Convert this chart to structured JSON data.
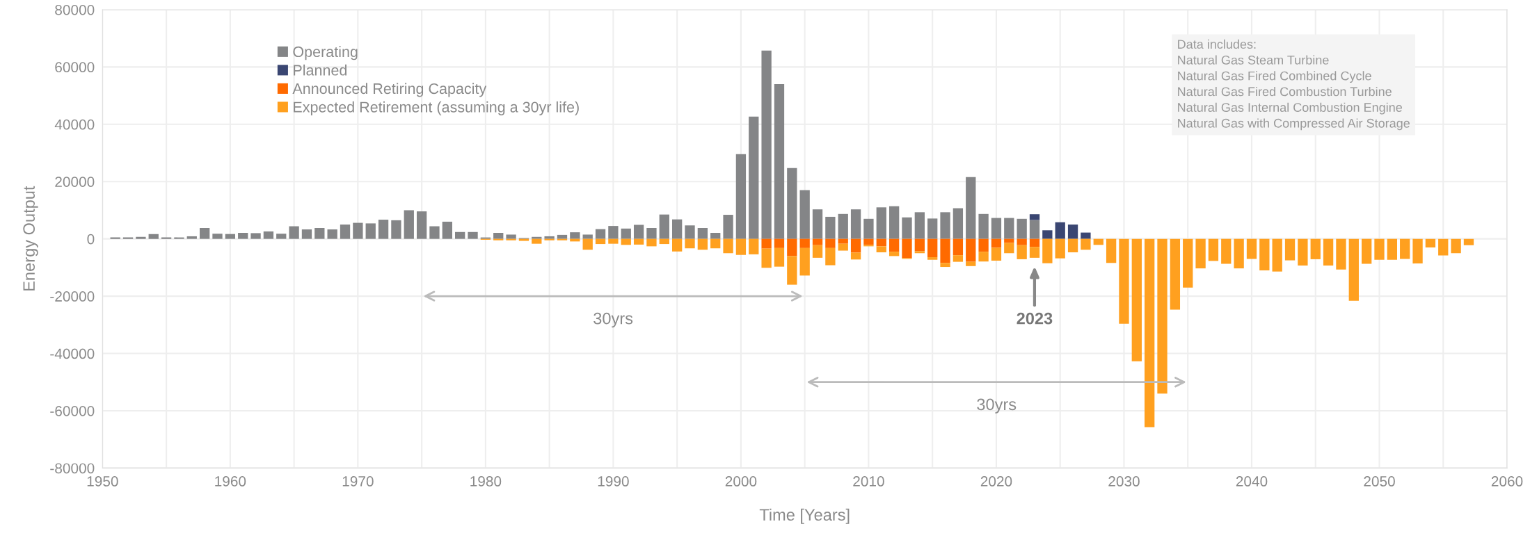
{
  "chart_data": {
    "type": "bar",
    "stacked": true,
    "xlabel": "Time [Years]",
    "ylabel": "Energy Output",
    "x": [
      1951,
      1952,
      1953,
      1954,
      1955,
      1956,
      1957,
      1958,
      1959,
      1960,
      1961,
      1962,
      1963,
      1964,
      1965,
      1966,
      1967,
      1968,
      1969,
      1970,
      1971,
      1972,
      1973,
      1974,
      1975,
      1976,
      1977,
      1978,
      1979,
      1980,
      1981,
      1982,
      1983,
      1984,
      1985,
      1986,
      1987,
      1988,
      1989,
      1990,
      1991,
      1992,
      1993,
      1994,
      1995,
      1996,
      1997,
      1998,
      1999,
      2000,
      2001,
      2002,
      2003,
      2004,
      2005,
      2006,
      2007,
      2008,
      2009,
      2010,
      2011,
      2012,
      2013,
      2014,
      2015,
      2016,
      2017,
      2018,
      2019,
      2020,
      2021,
      2022,
      2023,
      2024,
      2025,
      2026,
      2027,
      2028,
      2029,
      2030,
      2031,
      2032,
      2033,
      2034,
      2035,
      2036,
      2037,
      2038,
      2039,
      2040,
      2041,
      2042,
      2043,
      2044,
      2045,
      2046,
      2047,
      2048,
      2049,
      2050,
      2051,
      2052,
      2053,
      2054,
      2055,
      2056,
      2057
    ],
    "series": [
      {
        "name": "Operating",
        "color": "#848587",
        "values": [
          500,
          500,
          700,
          1700,
          500,
          500,
          900,
          3800,
          1800,
          1700,
          2100,
          2000,
          2600,
          1800,
          4400,
          3300,
          3800,
          3300,
          5000,
          5600,
          5400,
          6700,
          6500,
          10000,
          9600,
          4400,
          6000,
          2400,
          2400,
          500,
          2100,
          1500,
          300,
          700,
          900,
          1400,
          2300,
          1500,
          3400,
          4500,
          3600,
          4900,
          3800,
          8500,
          6800,
          4700,
          3800,
          2100,
          8400,
          29600,
          42700,
          65700,
          54000,
          24700,
          17000,
          10300,
          7700,
          8700,
          10300,
          7000,
          11000,
          11400,
          7500,
          9300,
          7100,
          9300,
          10700,
          21600,
          8700,
          7300,
          7300,
          7000,
          6600,
          null,
          null,
          null,
          null,
          null,
          null,
          null,
          null,
          null,
          null,
          null,
          null,
          null,
          null,
          null,
          null,
          null,
          null,
          null,
          null,
          null,
          null,
          null,
          null,
          null,
          null,
          null,
          null,
          null,
          null,
          null,
          null,
          null,
          null
        ]
      },
      {
        "name": "Planned",
        "color": "#3a4672",
        "values": [
          null,
          null,
          null,
          null,
          null,
          null,
          null,
          null,
          null,
          null,
          null,
          null,
          null,
          null,
          null,
          null,
          null,
          null,
          null,
          null,
          null,
          null,
          null,
          null,
          null,
          null,
          null,
          null,
          null,
          null,
          null,
          null,
          null,
          null,
          null,
          null,
          null,
          null,
          null,
          null,
          null,
          null,
          null,
          null,
          null,
          null,
          null,
          null,
          null,
          null,
          null,
          null,
          null,
          null,
          null,
          null,
          null,
          null,
          null,
          null,
          null,
          null,
          null,
          null,
          null,
          null,
          null,
          null,
          null,
          null,
          null,
          null,
          2000,
          3000,
          5800,
          5000,
          2200,
          null,
          null,
          null,
          null,
          null,
          null,
          null,
          null,
          null,
          null,
          null,
          null,
          null,
          null,
          null,
          null,
          null,
          null,
          null,
          null,
          null,
          null,
          null,
          null,
          null,
          null,
          null,
          null,
          null,
          null
        ]
      },
      {
        "name": "Announced Retiring Capacity",
        "color": "#ff6a00",
        "values": [
          null,
          null,
          null,
          null,
          null,
          null,
          null,
          null,
          null,
          null,
          null,
          null,
          null,
          null,
          null,
          null,
          null,
          null,
          null,
          null,
          null,
          null,
          null,
          null,
          null,
          null,
          null,
          null,
          null,
          null,
          null,
          null,
          null,
          null,
          null,
          null,
          null,
          null,
          null,
          null,
          null,
          null,
          null,
          null,
          null,
          null,
          null,
          null,
          null,
          null,
          null,
          -3400,
          -3200,
          -6000,
          -3200,
          -2200,
          -3200,
          -1700,
          -4800,
          -2100,
          -2600,
          -4500,
          -6700,
          -4300,
          -6400,
          -8400,
          -5700,
          -8000,
          -4500,
          -3100,
          -1400,
          -2200,
          -2800,
          null,
          null,
          null,
          null,
          null,
          null,
          null,
          null,
          null,
          null,
          null,
          null,
          null,
          null,
          null,
          null,
          null,
          null,
          null,
          null,
          null,
          null,
          null,
          null,
          null,
          null,
          null,
          null,
          null,
          null,
          null,
          null,
          null,
          null
        ]
      },
      {
        "name": "Expected Retirement (assuming a 30yr life)",
        "color": "#ffa01f",
        "values": [
          null,
          null,
          null,
          null,
          null,
          null,
          null,
          null,
          null,
          null,
          null,
          null,
          null,
          null,
          null,
          null,
          null,
          null,
          null,
          null,
          null,
          null,
          null,
          null,
          null,
          null,
          null,
          null,
          null,
          -300,
          -500,
          -500,
          -700,
          -1700,
          -500,
          -500,
          -900,
          -3800,
          -1800,
          -1700,
          -2100,
          -2000,
          -2600,
          -1800,
          -4400,
          -3300,
          -3800,
          -3300,
          -5000,
          -5600,
          -5400,
          -6700,
          -6500,
          -10000,
          -9600,
          -4400,
          -6000,
          -2400,
          -2400,
          -500,
          -2100,
          -1500,
          -300,
          -700,
          -900,
          -1400,
          -2300,
          -1500,
          -3400,
          -4500,
          -3600,
          -4900,
          -3800,
          -8500,
          -6800,
          -4700,
          -3800,
          -2100,
          -8400,
          -29600,
          -42700,
          -65700,
          -54000,
          -24700,
          -17000,
          -10300,
          -7700,
          -8700,
          -10300,
          -7000,
          -11000,
          -11400,
          -7500,
          -9300,
          -7100,
          -9300,
          -10700,
          -21600,
          -8700,
          -7300,
          -7300,
          -7000,
          -8600,
          -3000,
          -5800,
          -5000,
          -2200
        ]
      }
    ],
    "xlim": [
      1950,
      2060
    ],
    "xticks": [
      1950,
      {
        "value": 1955,
        "label": null
      },
      1960,
      {
        "value": 1965,
        "label": null
      },
      1970,
      {
        "value": 1975,
        "label": null
      },
      1980,
      {
        "value": 1985,
        "label": null
      },
      1990,
      {
        "value": 1995,
        "label": null
      },
      2000,
      {
        "value": 2005,
        "label": null
      },
      2010,
      {
        "value": 2015,
        "label": null
      },
      2020,
      {
        "value": 2025,
        "label": null
      },
      2030,
      {
        "value": 2035,
        "label": null
      },
      2040,
      {
        "value": 2045,
        "label": null
      },
      2050,
      {
        "value": 2055,
        "label": null
      },
      2060
    ],
    "ylim": [
      -80000,
      80000
    ],
    "yticks": [
      -80000,
      -60000,
      -40000,
      -20000,
      0,
      20000,
      40000,
      60000,
      80000
    ],
    "grid": true,
    "legend": "top left",
    "annotations": [
      "30yrs",
      "30yrs",
      "2023",
      "Data includes:\nNatural Gas Steam Turbine\nNatural Gas Fired Combined Cycle\nNatural Gas Fired Combustion Turbine\nNatural Gas Internal Combustion Engine\nNatural Gas with Compressed Air Storage"
    ]
  }
}
